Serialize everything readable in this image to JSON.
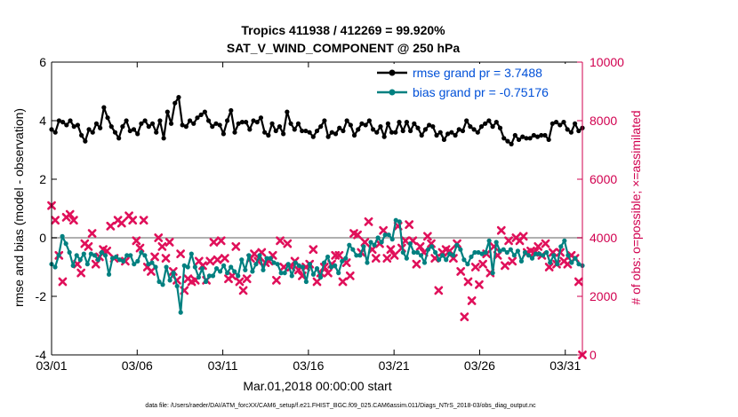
{
  "chart_data": {
    "type": "line",
    "title": "Tropics 411938 / 412269 = 99.920%",
    "subtitle": "SAT_V_WIND_COMPONENT @ 250 hPa",
    "xlabel": "Mar.01,2018 00:00:00 start",
    "ylabel": "rmse and bias (model - observation)",
    "ylabel_right": "# of obs: o=possible; ×=assimilated",
    "xlim": [
      1,
      32
    ],
    "ylim": [
      -4,
      6
    ],
    "ylim_right": [
      0,
      10000
    ],
    "x_ticks": [
      1,
      6,
      11,
      16,
      21,
      26,
      31
    ],
    "x_tick_labels": [
      "03/01",
      "03/06",
      "03/11",
      "03/16",
      "03/21",
      "03/26",
      "03/31"
    ],
    "y_ticks": [
      -4,
      -2,
      0,
      2,
      4,
      6
    ],
    "y_tick_labels": [
      "-4",
      "-2",
      "0",
      "2",
      "4",
      "6"
    ],
    "y_right_ticks": [
      0,
      2000,
      4000,
      6000,
      8000,
      10000
    ],
    "y_right_tick_labels": [
      "0",
      "2000",
      "4000",
      "6000",
      "8000",
      "10000"
    ],
    "zero_line": 0,
    "series": [
      {
        "name": "rmse",
        "legend": "rmse grand pr = 3.7488",
        "color": "#000000",
        "marker": "circle",
        "values": [
          3.7,
          3.6,
          4.0,
          3.95,
          3.85,
          4.0,
          3.8,
          3.85,
          3.5,
          3.3,
          3.7,
          3.6,
          3.9,
          3.75,
          4.45,
          4.1,
          3.8,
          3.6,
          3.4,
          3.8,
          4.0,
          3.65,
          3.7,
          3.55,
          3.9,
          4.0,
          3.8,
          3.9,
          3.6,
          4.0,
          3.4,
          4.3,
          3.9,
          4.6,
          4.8,
          3.85,
          3.8,
          4.0,
          3.9,
          4.1,
          4.2,
          4.3,
          4.0,
          3.8,
          3.9,
          3.85,
          3.55,
          4.0,
          4.35,
          3.6,
          3.9,
          3.95,
          3.95,
          3.7,
          4.0,
          3.95,
          4.1,
          3.6,
          3.5,
          3.9,
          3.65,
          3.8,
          3.55,
          4.3,
          3.9,
          3.7,
          3.9,
          3.65,
          3.65,
          3.6,
          3.45,
          3.65,
          3.8,
          4.0,
          3.45,
          3.6,
          3.55,
          3.75,
          3.65,
          4.0,
          3.85,
          3.5,
          3.7,
          3.9,
          3.85,
          4.0,
          3.7,
          3.6,
          3.8,
          3.45,
          3.9,
          3.6,
          3.6,
          3.95,
          3.65,
          3.95,
          3.65,
          3.9,
          3.75,
          3.5,
          3.7,
          3.85,
          3.8,
          3.5,
          3.6,
          3.35,
          3.55,
          3.6,
          3.5,
          3.7,
          3.65,
          4.0,
          3.8,
          3.7,
          3.6,
          3.8,
          3.9,
          4.0,
          3.8,
          3.95,
          3.75,
          3.4,
          3.3,
          3.2,
          3.5,
          3.35,
          3.45,
          3.4,
          3.4,
          3.5,
          3.45,
          3.5,
          3.5,
          3.35,
          3.9,
          3.95,
          3.85,
          3.95,
          3.7,
          3.6,
          3.9,
          3.65,
          3.75
        ]
      },
      {
        "name": "bias",
        "legend": "bias grand pr = -0.75176",
        "color": "#008080",
        "marker": "circle",
        "values": [
          -0.9,
          -1.0,
          -0.6,
          0.05,
          -0.2,
          -0.5,
          -0.95,
          -0.6,
          -0.75,
          -0.55,
          -0.9,
          -0.55,
          -0.6,
          -0.75,
          -0.5,
          -0.6,
          -1.25,
          -0.7,
          -0.65,
          -0.75,
          -0.8,
          -0.6,
          -0.6,
          -0.9,
          -0.8,
          -0.5,
          -0.6,
          -0.9,
          -0.85,
          -1.0,
          -1.5,
          -1.6,
          -1.0,
          -1.45,
          -1.2,
          -1.65,
          -2.55,
          -0.95,
          -1.0,
          -0.55,
          -1.0,
          -1.35,
          -1.05,
          -1.5,
          -1.3,
          -1.3,
          -1.05,
          -1.15,
          -0.95,
          -1.2,
          -1.0,
          -1.15,
          -1.3,
          -0.75,
          -1.1,
          -0.6,
          -1.15,
          -0.9,
          -0.6,
          -1.1,
          -0.7,
          -0.7,
          -0.85,
          -0.9,
          -1.2,
          -1.2,
          -0.9,
          -1.3,
          -0.85,
          -0.95,
          -1.0,
          -1.5,
          -0.9,
          -1.25,
          -1.05,
          -1.35,
          -0.85,
          -0.65,
          -1.0,
          -0.95,
          -1.2,
          -0.8,
          -0.7,
          -0.25,
          -0.4,
          -0.6,
          -0.6,
          -0.3,
          -0.85,
          -0.15,
          -0.25,
          0.0,
          -0.15,
          0.1,
          0.1,
          -0.05,
          0.6,
          0.55,
          -0.5,
          -0.7,
          -0.2,
          -0.5,
          -0.5,
          -0.6,
          -0.85,
          -0.4,
          -0.3,
          -0.5,
          -0.75,
          -0.6,
          -0.75,
          -0.55,
          -0.6,
          -0.25,
          -0.4,
          -0.75,
          -0.9,
          -0.65,
          -0.5,
          -0.5,
          -0.55,
          -0.5,
          -0.1,
          -1.2,
          -0.15,
          -0.45,
          -0.4,
          -0.5,
          -0.4,
          -0.6,
          -0.45,
          -0.8,
          -0.5,
          -0.6,
          -0.7,
          -0.55,
          -0.55,
          -0.6,
          -0.5,
          -0.85,
          -0.6,
          -0.9,
          -0.3,
          -0.1,
          -0.6,
          -0.85,
          -0.7,
          -0.9,
          -0.95
        ]
      }
    ],
    "obs_series": {
      "name": "assimilated",
      "axis": "right",
      "color": "#e0105a",
      "marker": "x",
      "values": [
        5100,
        4600,
        3400,
        2500,
        4700,
        4800,
        4600,
        3100,
        2800,
        3800,
        3700,
        4150,
        3100,
        3350,
        3600,
        3550,
        4400,
        3300,
        4600,
        4500,
        3200,
        4750,
        4600,
        3900,
        3650,
        4600,
        3000,
        2850,
        3350,
        4000,
        3700,
        3300,
        3850,
        2850,
        2550,
        3450,
        2200,
        2600,
        2500,
        2550,
        3200,
        3050,
        2550,
        3200,
        3850,
        3250,
        3900,
        3300,
        2600,
        2700,
        3700,
        2500,
        2200,
        2600,
        3300,
        3450,
        3200,
        3500,
        3150,
        3200,
        3400,
        2550,
        3900,
        3000,
        3800,
        3000,
        3200,
        2900,
        2700,
        3000,
        3100,
        3600,
        2500,
        2800,
        3000,
        2800,
        3100,
        3400,
        3400,
        2500,
        3150,
        2700,
        4150,
        4100,
        3500,
        3850,
        4550,
        3600,
        3300,
        3800,
        4250,
        3300,
        3600,
        3400,
        4400,
        3650,
        3900,
        4450,
        3900,
        3100,
        3700,
        3500,
        4050,
        3800,
        3300,
        2200,
        3500,
        3600,
        3550,
        3300,
        3800,
        2850,
        1300,
        2500,
        1850,
        3000,
        2400,
        3100,
        3450,
        2800,
        3700,
        3400,
        4250,
        3050,
        3900,
        3200,
        4000,
        3900,
        4050,
        3500,
        3550,
        3500,
        3700,
        3400,
        3800,
        3000,
        3500,
        3100,
        3500,
        3200,
        3100,
        3400,
        3300,
        2500,
        0
      ]
    }
  },
  "footer": "data file: /Users/raeder/DAI/ATM_forcXX/CAM6_setup/f.e21.FHIST_BGC.f09_025.CAM6assim.011/Diags_NTrS_2018-03/obs_diag_output.nc"
}
